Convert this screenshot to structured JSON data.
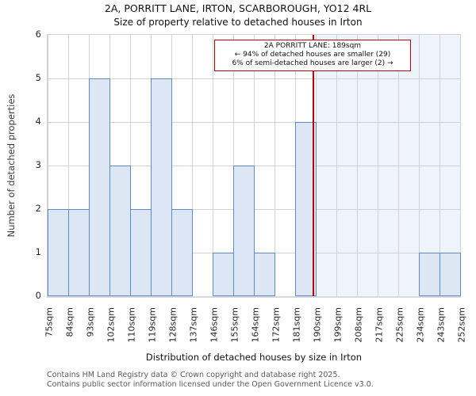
{
  "chart_data": {
    "type": "bar",
    "title": "2A, PORRITT LANE, IRTON, SCARBOROUGH, YO12 4RL",
    "subtitle": "Size of property relative to detached houses in Irton",
    "xlabel": "Distribution of detached houses by size in Irton",
    "ylabel": "Number of detached properties",
    "categories": [
      "75sqm",
      "84sqm",
      "93sqm",
      "102sqm",
      "110sqm",
      "119sqm",
      "128sqm",
      "137sqm",
      "146sqm",
      "155sqm",
      "164sqm",
      "172sqm",
      "181sqm",
      "190sqm",
      "199sqm",
      "208sqm",
      "217sqm",
      "225sqm",
      "234sqm",
      "243sqm",
      "252sqm"
    ],
    "bin_edges_sqm": [
      75,
      84,
      93,
      102,
      110,
      119,
      128,
      137,
      146,
      155,
      164,
      172,
      181,
      190,
      199,
      208,
      217,
      225,
      234,
      243,
      252
    ],
    "values": [
      2,
      2,
      5,
      3,
      2,
      5,
      2,
      0,
      1,
      3,
      1,
      0,
      4,
      0,
      0,
      0,
      0,
      0,
      1,
      1
    ],
    "ylim": [
      0,
      6
    ],
    "yticks": [
      0,
      1,
      2,
      3,
      4,
      5,
      6
    ],
    "grid": true,
    "legend": "none",
    "marker": {
      "value_sqm": 189,
      "label": "2A PORRITT LANE: 189sqm",
      "smaller_text": "← 94% of detached houses are smaller (29)",
      "larger_text": "6% of semi-detached houses are larger (2) →"
    },
    "shaded_region": {
      "from_sqm": 190,
      "to_sqm": 252
    },
    "colors": {
      "bar_fill": "#dce6f5",
      "bar_border": "#6089c7",
      "marker_line": "#bf0000",
      "annotation_border": "#bf0000",
      "shade_fill": "#eff3fb",
      "gridline": "#d2d2d2",
      "axis_text": "#262626",
      "footer_text": "#595959"
    }
  },
  "footer": {
    "line1": "Contains HM Land Registry data © Crown copyright and database right 2025.",
    "line2": "Contains public sector information licensed under the Open Government Licence v3.0."
  }
}
